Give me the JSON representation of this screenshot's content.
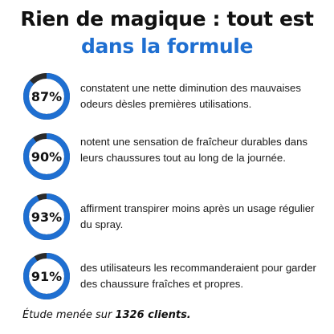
{
  "heading": {
    "line1": "Rien de magique : tout est",
    "line2": "dans la formule"
  },
  "colors": {
    "accent": "#1f6fd1",
    "track": "#2b2b2b",
    "text": "#111111"
  },
  "stats": [
    {
      "percent_label": "87%",
      "value": 87,
      "text": "constatent une nette diminution des mauvaises odeurs dèsles premières utilisations."
    },
    {
      "percent_label": "90%",
      "value": 90,
      "text": "notent une sensation de fraîcheur durables dans leurs chaussures tout au long de la journée."
    },
    {
      "percent_label": "93%",
      "value": 93,
      "text": "affirment transpirer moins après un usage régulier du spray."
    },
    {
      "percent_label": "91%",
      "value": 91,
      "text": "des utilisateurs les recommanderaient pour garder des chaussure fraîches et propres."
    }
  ],
  "footer": {
    "prefix": "Étude menée sur ",
    "emphasis": "1326 clients."
  }
}
